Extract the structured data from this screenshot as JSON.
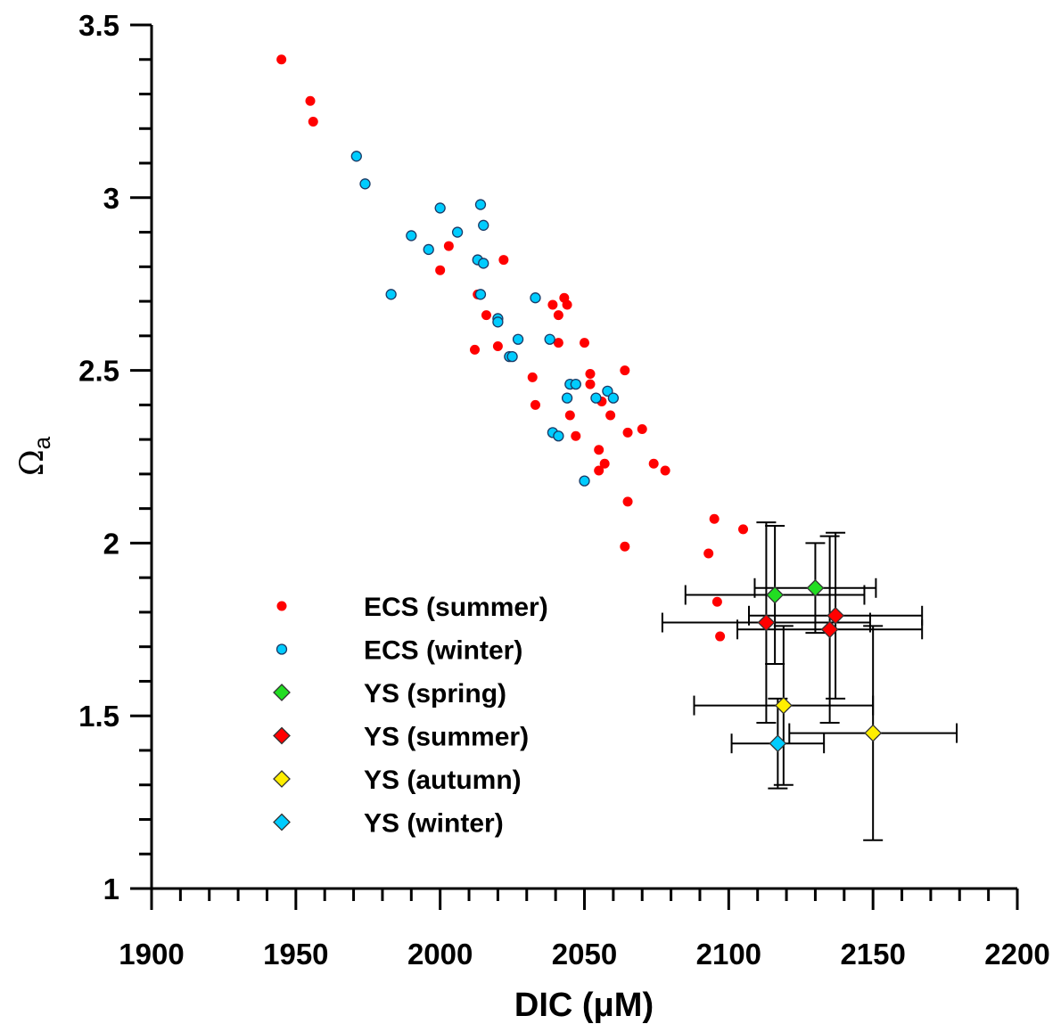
{
  "chart_data": {
    "type": "scatter",
    "xlabel": "DIC (μM)",
    "ylabel_main": "Ω",
    "ylabel_sub": "a",
    "xlim": [
      1900,
      2200
    ],
    "ylim": [
      1,
      3.5
    ],
    "x_ticks": [
      1900,
      1950,
      2000,
      2050,
      2100,
      2150,
      2200
    ],
    "y_ticks": [
      1,
      1.5,
      2,
      2.5,
      3,
      3.5
    ],
    "x_tick_labels": [
      "1900",
      "1950",
      "2000",
      "2050",
      "2100",
      "2150",
      "2200"
    ],
    "y_tick_labels": [
      "1",
      "1.5",
      "2",
      "2.5",
      "3",
      "3.5"
    ],
    "legend_position": "lower-left",
    "series": [
      {
        "name": "ECS (summer)",
        "marker": "dot",
        "color": "#ff0000",
        "points": [
          [
            1945,
            3.4
          ],
          [
            1955,
            3.28
          ],
          [
            1956,
            3.22
          ],
          [
            2003,
            2.86
          ],
          [
            2000,
            2.79
          ],
          [
            2022,
            2.82
          ],
          [
            2013,
            2.72
          ],
          [
            2016,
            2.66
          ],
          [
            2012,
            2.56
          ],
          [
            2020,
            2.57
          ],
          [
            2039,
            2.69
          ],
          [
            2041,
            2.66
          ],
          [
            2043,
            2.71
          ],
          [
            2044,
            2.69
          ],
          [
            2041,
            2.58
          ],
          [
            2050,
            2.58
          ],
          [
            2032,
            2.48
          ],
          [
            2033,
            2.4
          ],
          [
            2052,
            2.49
          ],
          [
            2052,
            2.46
          ],
          [
            2045,
            2.37
          ],
          [
            2047,
            2.31
          ],
          [
            2056,
            2.41
          ],
          [
            2059,
            2.37
          ],
          [
            2064,
            2.5
          ],
          [
            2065,
            2.32
          ],
          [
            2070,
            2.33
          ],
          [
            2055,
            2.27
          ],
          [
            2057,
            2.23
          ],
          [
            2055,
            2.21
          ],
          [
            2065,
            2.12
          ],
          [
            2074,
            2.23
          ],
          [
            2078,
            2.21
          ],
          [
            2064,
            1.99
          ],
          [
            2095,
            2.07
          ],
          [
            2105,
            2.04
          ],
          [
            2093,
            1.97
          ],
          [
            2096,
            1.83
          ],
          [
            2097,
            1.73
          ]
        ]
      },
      {
        "name": "ECS (winter)",
        "marker": "circle",
        "color": "#00ccff",
        "points": [
          [
            1971,
            3.12
          ],
          [
            1974,
            3.04
          ],
          [
            2000,
            2.97
          ],
          [
            2014,
            2.98
          ],
          [
            1990,
            2.89
          ],
          [
            1996,
            2.85
          ],
          [
            2006,
            2.9
          ],
          [
            2015,
            2.92
          ],
          [
            2013,
            2.82
          ],
          [
            2015,
            2.81
          ],
          [
            1983,
            2.72
          ],
          [
            2014,
            2.72
          ],
          [
            2020,
            2.65
          ],
          [
            2020,
            2.64
          ],
          [
            2033,
            2.71
          ],
          [
            2027,
            2.59
          ],
          [
            2038,
            2.59
          ],
          [
            2024,
            2.54
          ],
          [
            2025,
            2.54
          ],
          [
            2045,
            2.46
          ],
          [
            2047,
            2.46
          ],
          [
            2044,
            2.42
          ],
          [
            2054,
            2.42
          ],
          [
            2058,
            2.44
          ],
          [
            2060,
            2.42
          ],
          [
            2039,
            2.32
          ],
          [
            2041,
            2.31
          ],
          [
            2050,
            2.18
          ]
        ]
      },
      {
        "name": "YS (spring)",
        "marker": "diamond",
        "color": "#22dd22",
        "points": [
          [
            2116,
            1.85
          ],
          [
            2130,
            1.87
          ]
        ],
        "xerr": [
          31,
          21
        ],
        "yerr": [
          0.2,
          0.13
        ]
      },
      {
        "name": "YS (summer)",
        "marker": "diamond",
        "color": "#ff0000",
        "points": [
          [
            2113,
            1.77
          ],
          [
            2137,
            1.79
          ],
          [
            2135,
            1.75
          ]
        ],
        "xerr": [
          36,
          30,
          32
        ],
        "yerr": [
          0.29,
          0.24,
          0.27
        ]
      },
      {
        "name": "YS (autumn)",
        "marker": "diamond",
        "color": "#ffee00",
        "points": [
          [
            2119,
            1.53
          ],
          [
            2150,
            1.45
          ]
        ],
        "xerr": [
          31,
          29
        ],
        "yerr": [
          0.23,
          0.31
        ]
      },
      {
        "name": "YS (winter)",
        "marker": "diamond",
        "color": "#00ccff",
        "points": [
          [
            2117,
            1.42
          ]
        ],
        "xerr": [
          16
        ],
        "yerr": [
          0.13
        ]
      }
    ]
  }
}
